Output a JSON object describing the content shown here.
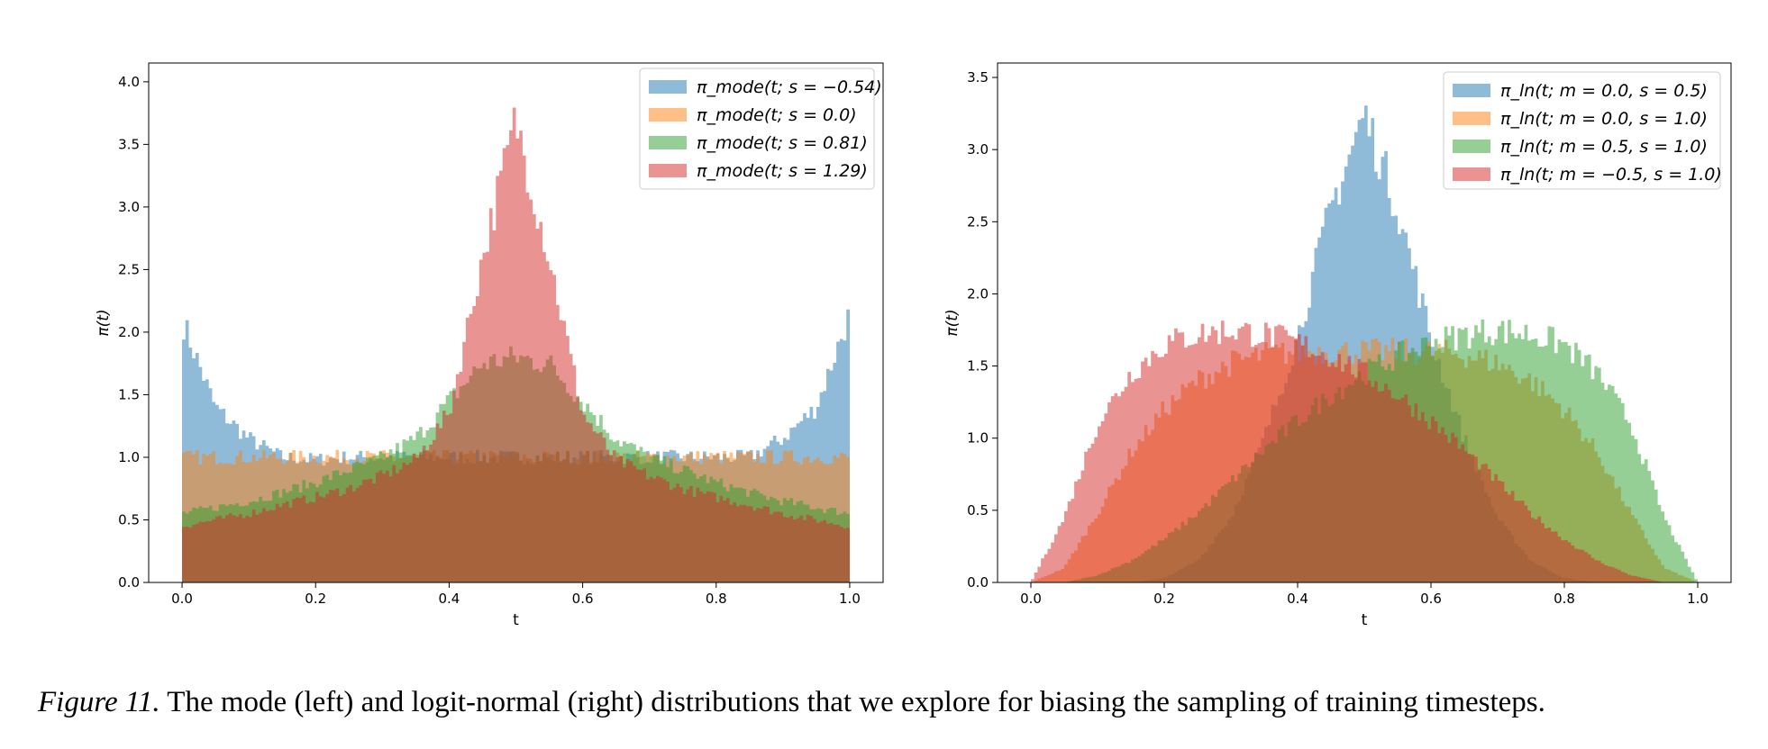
{
  "figure": {
    "caption_label": "Figure 11.",
    "caption_text": " The mode (left) and logit-normal (right) distributions that we explore for biasing the sampling of training timesteps."
  },
  "colors": {
    "blue": "#1f77b4",
    "orange": "#ff7f0e",
    "green": "#2ca02c",
    "red": "#d62728"
  },
  "chart_data": [
    {
      "type": "area",
      "subtype": "overlapping-histogram",
      "xlabel": "t",
      "ylabel": "π(t)",
      "xlim": [
        -0.05,
        1.05
      ],
      "ylim": [
        0,
        4.15
      ],
      "xticks": [
        "0.0",
        "0.2",
        "0.4",
        "0.6",
        "0.8",
        "1.0"
      ],
      "yticks": [
        "0.0",
        "0.5",
        "1.0",
        "1.5",
        "2.0",
        "2.5",
        "3.0",
        "3.5",
        "4.0"
      ],
      "legend_position": "upper right",
      "x": [
        0.0,
        0.05,
        0.1,
        0.15,
        0.2,
        0.25,
        0.3,
        0.35,
        0.4,
        0.45,
        0.5,
        0.55,
        0.6,
        0.65,
        0.7,
        0.75,
        0.8,
        0.85,
        0.9,
        0.95,
        1.0
      ],
      "series": [
        {
          "legend_label": "π_mode(t; s = −0.54)",
          "color": "#1f77b4",
          "values": [
            2.1,
            1.4,
            1.15,
            1.0,
            0.98,
            1.0,
            1.0,
            1.0,
            1.0,
            1.0,
            1.0,
            1.0,
            1.0,
            1.0,
            1.0,
            1.0,
            1.0,
            1.0,
            1.15,
            1.4,
            2.15
          ]
        },
        {
          "legend_label": "π_mode(t; s = 0.0)",
          "color": "#ff7f0e",
          "values": [
            1.0,
            1.0,
            1.0,
            1.0,
            1.0,
            1.0,
            1.0,
            1.0,
            1.0,
            1.0,
            1.0,
            1.0,
            1.0,
            1.0,
            1.0,
            1.0,
            1.0,
            1.0,
            1.0,
            1.0,
            1.0
          ]
        },
        {
          "legend_label": "π_mode(t; s = 0.81)",
          "color": "#2ca02c",
          "values": [
            0.55,
            0.6,
            0.65,
            0.72,
            0.8,
            0.9,
            1.0,
            1.15,
            1.45,
            1.75,
            1.8,
            1.75,
            1.45,
            1.15,
            1.0,
            0.9,
            0.8,
            0.72,
            0.65,
            0.6,
            0.55
          ]
        },
        {
          "legend_label": "π_mode(t; s = 1.29)",
          "color": "#d62728",
          "values": [
            0.45,
            0.5,
            0.55,
            0.62,
            0.68,
            0.75,
            0.85,
            0.98,
            1.35,
            2.6,
            3.7,
            2.6,
            1.35,
            0.98,
            0.85,
            0.75,
            0.68,
            0.62,
            0.55,
            0.5,
            0.45
          ]
        }
      ]
    },
    {
      "type": "area",
      "subtype": "overlapping-histogram",
      "xlabel": "t",
      "ylabel": "π(t)",
      "xlim": [
        -0.05,
        1.05
      ],
      "ylim": [
        0,
        3.6
      ],
      "xticks": [
        "0.0",
        "0.2",
        "0.4",
        "0.6",
        "0.8",
        "1.0"
      ],
      "yticks": [
        "0.0",
        "0.5",
        "1.0",
        "1.5",
        "2.0",
        "2.5",
        "3.0",
        "3.5"
      ],
      "legend_position": "upper right",
      "x": [
        0.0,
        0.05,
        0.1,
        0.15,
        0.2,
        0.25,
        0.3,
        0.35,
        0.4,
        0.45,
        0.5,
        0.55,
        0.6,
        0.65,
        0.7,
        0.75,
        0.8,
        0.85,
        0.9,
        0.95,
        1.0
      ],
      "series": [
        {
          "legend_label": "π_ln(t; m = 0.0, s = 0.5)",
          "color": "#1f77b4",
          "values": [
            0.0,
            0.0,
            0.0,
            0.0,
            0.03,
            0.15,
            0.45,
            1.0,
            1.7,
            2.6,
            3.25,
            2.6,
            1.7,
            1.0,
            0.45,
            0.15,
            0.03,
            0.0,
            0.0,
            0.0,
            0.0
          ]
        },
        {
          "legend_label": "π_ln(t; m = 0.0, s = 1.0)",
          "color": "#ff7f0e",
          "values": [
            0.0,
            0.1,
            0.48,
            0.9,
            1.2,
            1.4,
            1.52,
            1.58,
            1.6,
            1.6,
            1.6,
            1.6,
            1.6,
            1.58,
            1.52,
            1.4,
            1.2,
            0.9,
            0.48,
            0.1,
            0.0
          ]
        },
        {
          "legend_label": "π_ln(t; m = 0.5, s = 1.0)",
          "color": "#2ca02c",
          "values": [
            0.0,
            0.0,
            0.05,
            0.15,
            0.3,
            0.48,
            0.7,
            0.92,
            1.12,
            1.3,
            1.45,
            1.57,
            1.66,
            1.72,
            1.75,
            1.72,
            1.65,
            1.45,
            1.1,
            0.45,
            0.0
          ]
        },
        {
          "legend_label": "π_ln(t; m = −0.5, s = 1.0)",
          "color": "#d62728",
          "values": [
            0.0,
            0.45,
            1.1,
            1.45,
            1.65,
            1.72,
            1.75,
            1.72,
            1.66,
            1.57,
            1.45,
            1.3,
            1.12,
            0.92,
            0.7,
            0.48,
            0.3,
            0.15,
            0.05,
            0.0,
            0.0
          ]
        }
      ]
    }
  ]
}
